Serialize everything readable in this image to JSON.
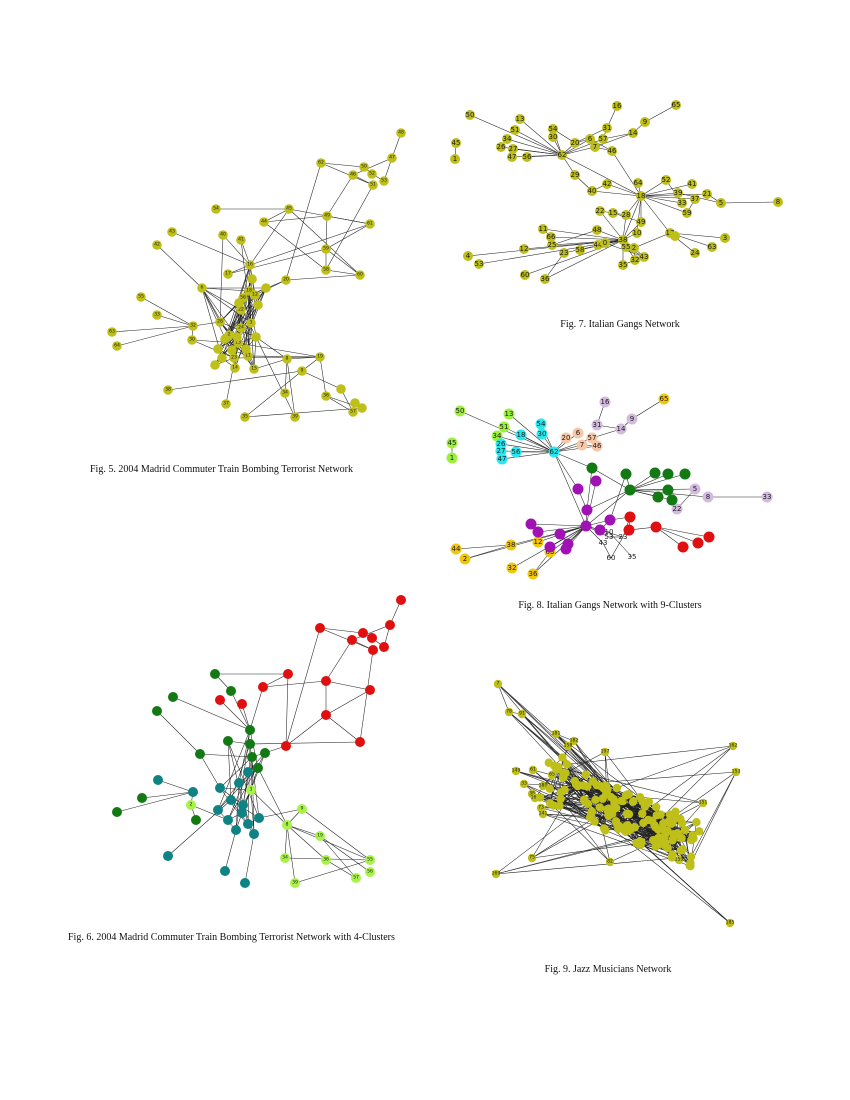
{
  "colors": {
    "olive": "#bfbf1a",
    "red": "#e01010",
    "dark_green": "#137a13",
    "teal": "#0e8383",
    "light_green": "#a8f24a",
    "cyan": "#26e8ee",
    "peach": "#f6c7a6",
    "lavender": "#d3bbe0",
    "purple": "#a012b4",
    "gold": "#f1c70c",
    "bright_green": "#9bf03b"
  },
  "figures": [
    {
      "id": "fig5",
      "caption": "Fig. 5.  2004 Madrid Commuter Train Bombing Terrorist Network",
      "labels": [
        "48",
        "62",
        "47",
        "50",
        "46",
        "52",
        "51",
        "53",
        "54",
        "44",
        "45",
        "49",
        "61",
        "43",
        "40",
        "41",
        "42",
        "59",
        "16",
        "17",
        "58",
        "60",
        "6",
        "18",
        "20",
        "22",
        "12",
        "55",
        "56",
        "33",
        "32",
        "28",
        "3",
        "30",
        "2",
        "24",
        "13",
        "23",
        "11",
        "14",
        "15",
        "19",
        "8",
        "9",
        "63",
        "64",
        "34",
        "36",
        "38",
        "37",
        "35",
        "39",
        "57"
      ]
    },
    {
      "id": "fig6",
      "caption": "Fig. 6.  2004 Madrid Commuter Train Bombing Terrorist Network with 4-Clusters",
      "labels": [
        "3",
        "2",
        "9",
        "8",
        "19",
        "34",
        "36",
        "55",
        "56",
        "57",
        "39"
      ]
    },
    {
      "id": "fig7",
      "caption": "Fig. 7.  Italian Gangs Network",
      "labels": [
        "50",
        "13",
        "16",
        "65",
        "45",
        "1",
        "51",
        "54",
        "31",
        "9",
        "34",
        "30",
        "57",
        "14",
        "26",
        "27",
        "20",
        "6",
        "47",
        "56",
        "62",
        "7",
        "46",
        "29",
        "40",
        "42",
        "18",
        "64",
        "52",
        "41",
        "39",
        "21",
        "5",
        "8",
        "33",
        "37",
        "59",
        "22",
        "15",
        "28",
        "49",
        "11",
        "66",
        "48",
        "17",
        "3",
        "25",
        "12",
        "38",
        "10",
        "58",
        "4",
        "23",
        "44",
        "63",
        "53",
        "24",
        "2",
        "55",
        "43",
        "60",
        "35",
        "32",
        "36",
        "0"
      ]
    },
    {
      "id": "fig8",
      "caption": "Fig. 8.  Italian Gangs Network with 9-Clusters",
      "labels": [
        "65",
        "16",
        "50",
        "13",
        "31",
        "9",
        "54",
        "14",
        "51",
        "34",
        "6",
        "30",
        "20",
        "57",
        "18",
        "7",
        "26",
        "27",
        "46",
        "62",
        "45",
        "56",
        "1",
        "47",
        "5",
        "8",
        "33",
        "22",
        "53",
        "10",
        "23",
        "43",
        "12",
        "38",
        "63",
        "44",
        "2",
        "32",
        "36",
        "60",
        "35"
      ]
    },
    {
      "id": "fig9",
      "caption": "Fig. 9.  Jazz Musicians Network",
      "labels": [
        "7",
        "78",
        "91",
        "181",
        "182",
        "158",
        "197",
        "61",
        "65",
        "149",
        "33",
        "38",
        "180",
        "73",
        "162",
        "141",
        "170",
        "151",
        "153",
        "162",
        "75",
        "159",
        "185",
        "169",
        "82"
      ]
    }
  ]
}
